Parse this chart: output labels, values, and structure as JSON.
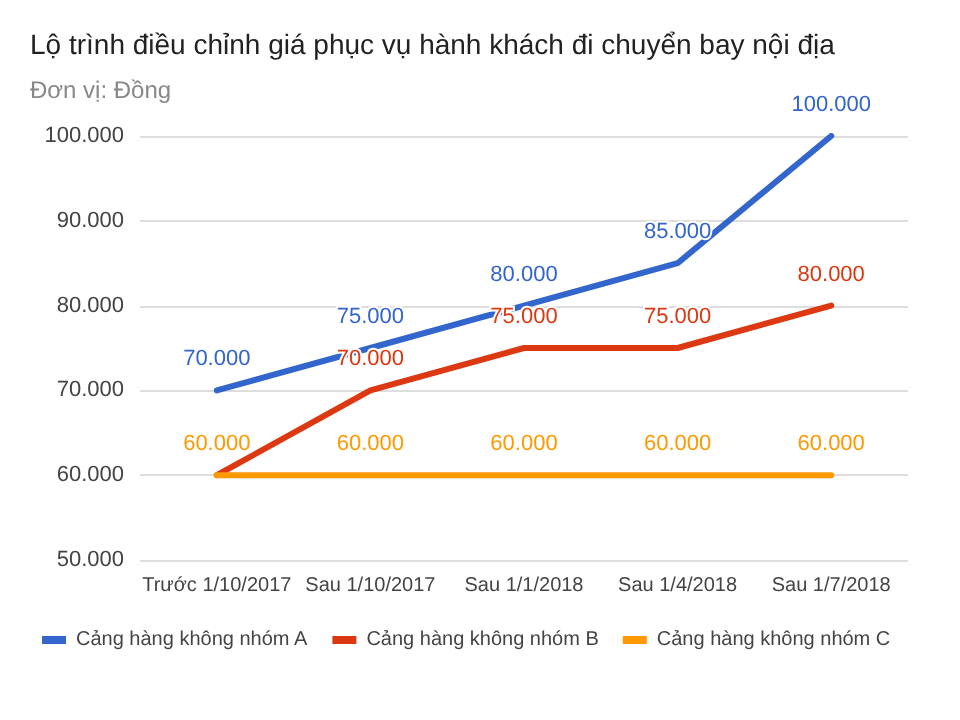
{
  "chart_data": {
    "type": "line",
    "title": "Lộ trình điều chỉnh giá phục vụ hành khách đi chuyển bay nội địa",
    "subtitle": "Đơn vị: Đồng",
    "categories": [
      "Trước 1/10/2017",
      "Sau 1/10/2017",
      "Sau 1/1/2018",
      "Sau 1/4/2018",
      "Sau 1/7/2018"
    ],
    "series": [
      {
        "name": "Cảng hàng không nhóm A",
        "color": "#3366cc",
        "values": [
          70000,
          75000,
          80000,
          85000,
          100000
        ],
        "value_labels": [
          "70.000",
          "75.000",
          "80.000",
          "85.000",
          "100.000"
        ]
      },
      {
        "name": "Cảng hàng không nhóm B",
        "color": "#dc3912",
        "values": [
          60000,
          70000,
          75000,
          75000,
          80000
        ],
        "value_labels": [
          null,
          "70.000",
          "75.000",
          "75.000",
          "80.000"
        ]
      },
      {
        "name": "Cảng hàng không nhóm C",
        "color": "#ff9900",
        "values": [
          60000,
          60000,
          60000,
          60000,
          60000
        ],
        "value_labels": [
          "60.000",
          "60.000",
          "60.000",
          "60.000",
          "60.000"
        ]
      }
    ],
    "ylim": [
      50000,
      100000
    ],
    "yticks": [
      {
        "value": 50000,
        "label": "50.000"
      },
      {
        "value": 60000,
        "label": "60.000"
      },
      {
        "value": 70000,
        "label": "70.000"
      },
      {
        "value": 80000,
        "label": "80.000"
      },
      {
        "value": 90000,
        "label": "90.000"
      },
      {
        "value": 100000,
        "label": "100.000"
      }
    ],
    "grid": "y",
    "legend": "bottom",
    "marker": "none",
    "line_style": "solid"
  }
}
